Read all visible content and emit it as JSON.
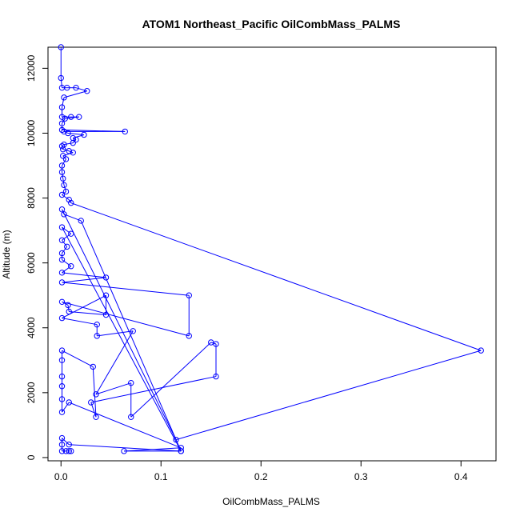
{
  "chart_data": {
    "type": "line",
    "title": "ATOM1 Northeast_Pacific OilCombMass_PALMS",
    "xlabel": "OilCombMass_PALMS",
    "ylabel": "Altitude (m)",
    "xlim": [
      -0.013,
      0.435
    ],
    "ylim": [
      -100,
      12650
    ],
    "x_ticks": [
      "0.0",
      "0.1",
      "0.2",
      "0.3",
      "0.4"
    ],
    "y_ticks": [
      "0",
      "2000",
      "4000",
      "6000",
      "8000",
      "10000",
      "12000"
    ],
    "marker": "open-circle",
    "color": "#0000ff",
    "series": [
      {
        "values": [
          [
            0.0,
            12650
          ],
          [
            0.0,
            11700
          ],
          [
            0.001,
            11400
          ],
          [
            0.006,
            11400
          ],
          [
            0.015,
            11400
          ],
          [
            0.026,
            11300
          ],
          [
            0.003,
            11100
          ],
          [
            0.001,
            10800
          ],
          [
            0.001,
            10500
          ],
          [
            0.01,
            10500
          ],
          [
            0.018,
            10500
          ],
          [
            0.004,
            10450
          ],
          [
            0.001,
            10300
          ],
          [
            0.001,
            10100
          ],
          [
            0.064,
            10050
          ],
          [
            0.003,
            10050
          ],
          [
            0.007,
            10000
          ],
          [
            0.023,
            9950
          ],
          [
            0.012,
            9850
          ],
          [
            0.015,
            9800
          ],
          [
            0.012,
            9700
          ],
          [
            0.003,
            9650
          ],
          [
            0.001,
            9600
          ],
          [
            0.002,
            9500
          ],
          [
            0.008,
            9450
          ],
          [
            0.012,
            9400
          ],
          [
            0.002,
            9300
          ],
          [
            0.005,
            9200
          ],
          [
            0.001,
            9000
          ],
          [
            0.001,
            8800
          ],
          [
            0.002,
            8600
          ],
          [
            0.003,
            8400
          ],
          [
            0.005,
            8200
          ],
          [
            0.001,
            8100
          ],
          [
            0.008,
            7950
          ],
          [
            0.01,
            7850
          ],
          [
            0.42,
            3300
          ],
          [
            0.115,
            550
          ],
          [
            0.001,
            7650
          ],
          [
            0.003,
            7500
          ],
          [
            0.02,
            7300
          ],
          [
            0.12,
            200
          ],
          [
            0.001,
            7100
          ],
          [
            0.01,
            6900
          ],
          [
            0.001,
            6700
          ],
          [
            0.006,
            6500
          ],
          [
            0.001,
            6300
          ],
          [
            0.001,
            6100
          ],
          [
            0.01,
            5900
          ],
          [
            0.001,
            5700
          ],
          [
            0.045,
            5550
          ],
          [
            0.001,
            5400
          ],
          [
            0.128,
            5000
          ],
          [
            0.128,
            3750
          ],
          [
            0.001,
            4800
          ],
          [
            0.007,
            4700
          ],
          [
            0.008,
            4500
          ],
          [
            0.045,
            4400
          ],
          [
            0.045,
            5000
          ],
          [
            0.001,
            4300
          ],
          [
            0.036,
            4100
          ],
          [
            0.036,
            3750
          ],
          [
            0.072,
            3900
          ],
          [
            0.035,
            1950
          ],
          [
            0.07,
            2300
          ],
          [
            0.07,
            1250
          ],
          [
            0.15,
            3550
          ],
          [
            0.155,
            3500
          ],
          [
            0.155,
            2500
          ],
          [
            0.03,
            1700
          ],
          [
            0.035,
            1250
          ],
          [
            0.032,
            2800
          ],
          [
            0.001,
            3300
          ],
          [
            0.001,
            3000
          ],
          [
            0.001,
            2500
          ],
          [
            0.001,
            2200
          ],
          [
            0.001,
            1800
          ],
          [
            0.001,
            1400
          ],
          [
            0.008,
            1700
          ],
          [
            0.12,
            300
          ],
          [
            0.063,
            200
          ],
          [
            0.12,
            200
          ],
          [
            0.008,
            400
          ],
          [
            0.001,
            600
          ],
          [
            0.001,
            400
          ],
          [
            0.001,
            200
          ],
          [
            0.005,
            200
          ],
          [
            0.008,
            200
          ],
          [
            0.01,
            200
          ]
        ]
      }
    ]
  }
}
